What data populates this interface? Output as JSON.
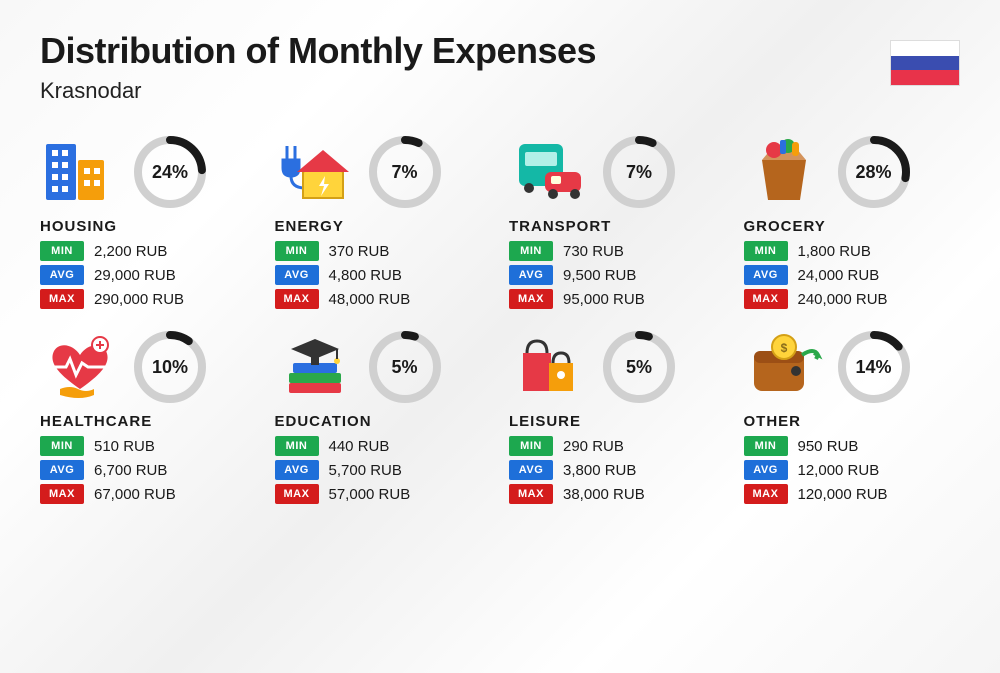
{
  "title": "Distribution of Monthly Expenses",
  "subtitle": "Krasnodar",
  "flag_colors": [
    "#ffffff",
    "#3a4db0",
    "#e8334a"
  ],
  "donut": {
    "track_color": "#d0d0d0",
    "progress_color": "#1a1a1a",
    "stroke_width": 8,
    "radius": 32
  },
  "badges": {
    "min": {
      "label": "MIN",
      "color": "#1da84f"
    },
    "avg": {
      "label": "AVG",
      "color": "#1e6fd9"
    },
    "max": {
      "label": "MAX",
      "color": "#d41c1c"
    }
  },
  "categories": [
    {
      "icon": "housing-icon",
      "name": "HOUSING",
      "percent": 24,
      "min": "2,200 RUB",
      "avg": "29,000 RUB",
      "max": "290,000 RUB"
    },
    {
      "icon": "energy-icon",
      "name": "ENERGY",
      "percent": 7,
      "min": "370 RUB",
      "avg": "4,800 RUB",
      "max": "48,000 RUB"
    },
    {
      "icon": "transport-icon",
      "name": "TRANSPORT",
      "percent": 7,
      "min": "730 RUB",
      "avg": "9,500 RUB",
      "max": "95,000 RUB"
    },
    {
      "icon": "grocery-icon",
      "name": "GROCERY",
      "percent": 28,
      "min": "1,800 RUB",
      "avg": "24,000 RUB",
      "max": "240,000 RUB"
    },
    {
      "icon": "healthcare-icon",
      "name": "HEALTHCARE",
      "percent": 10,
      "min": "510 RUB",
      "avg": "6,700 RUB",
      "max": "67,000 RUB"
    },
    {
      "icon": "education-icon",
      "name": "EDUCATION",
      "percent": 5,
      "min": "440 RUB",
      "avg": "5,700 RUB",
      "max": "57,000 RUB"
    },
    {
      "icon": "leisure-icon",
      "name": "LEISURE",
      "percent": 5,
      "min": "290 RUB",
      "avg": "3,800 RUB",
      "max": "38,000 RUB"
    },
    {
      "icon": "other-icon",
      "name": "OTHER",
      "percent": 14,
      "min": "950 RUB",
      "avg": "12,000 RUB",
      "max": "120,000 RUB"
    }
  ]
}
